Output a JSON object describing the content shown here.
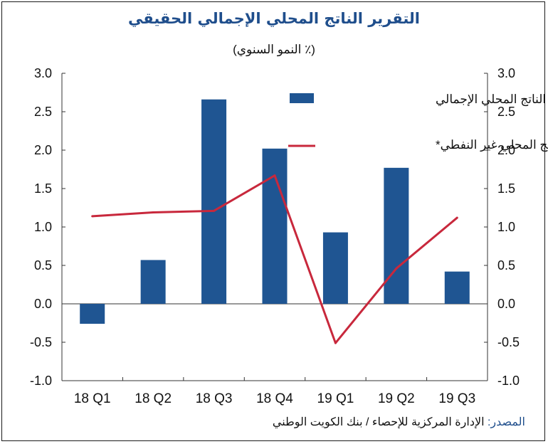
{
  "title": "التقرير الناتج المحلي الإجمالي الحقيقي",
  "subtitle": "(٪ النمو السنوي)",
  "source": {
    "label": "المصدر:",
    "text": "الإدارة المركزية للإحصاء / بنك الكويت الوطني"
  },
  "colors": {
    "bar": "#1f5592",
    "line": "#c8283c",
    "title": "#1f4e8c"
  },
  "chart_data": {
    "type": "bar",
    "categories": [
      "18 Q1",
      "18 Q2",
      "18 Q3",
      "18 Q4",
      "19 Q1",
      "19 Q2",
      "19 Q3"
    ],
    "ylim": [
      -1.0,
      3.0
    ],
    "yticks": [
      "3.0",
      "2.5",
      "2.0",
      "1.5",
      "1.0",
      "0.5",
      "0.0",
      "-0.5",
      "-1.0"
    ],
    "ytick_values": [
      3.0,
      2.5,
      2.0,
      1.5,
      1.0,
      0.5,
      0.0,
      -0.5,
      -1.0
    ],
    "grid": false,
    "legend_position": "top-right",
    "series": [
      {
        "name": "الناتج المحلي الإجمالي",
        "type": "bar",
        "values": [
          -0.26,
          0.57,
          2.66,
          2.02,
          0.93,
          1.77,
          0.42
        ]
      },
      {
        "name": "الناتج المحلي غير النفطي*",
        "type": "line",
        "values": [
          1.14,
          1.19,
          1.21,
          1.67,
          -0.51,
          0.46,
          1.12
        ]
      }
    ]
  }
}
